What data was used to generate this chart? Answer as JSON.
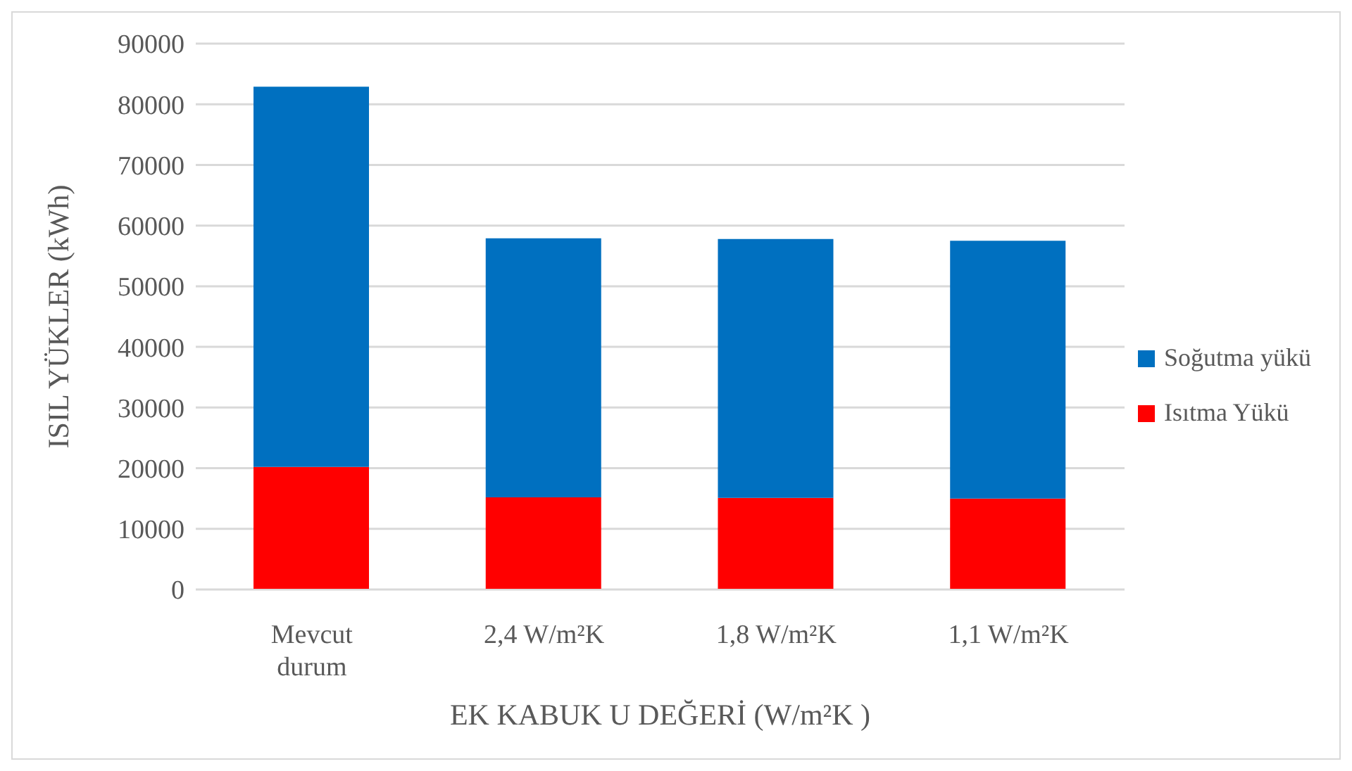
{
  "chart_data": {
    "type": "bar",
    "stacked": true,
    "xlabel": "EK KABUK U DEĞERİ (W/m²K )",
    "ylabel": "ISIL YÜKLER (kWh)",
    "categories": [
      "Mevcut durum",
      "2,4 W/m²K",
      "1,8 W/m²K",
      "1,1 W/m²K"
    ],
    "series": [
      {
        "name": "Isıtma Yükü",
        "color": "#ff0000",
        "values": [
          20200,
          15200,
          15100,
          15000
        ]
      },
      {
        "name": "Soğutma yükü",
        "color": "#0070c0",
        "values": [
          62700,
          42700,
          42700,
          42500
        ]
      }
    ],
    "ylim": [
      0,
      90000
    ],
    "yticks": [
      0,
      10000,
      20000,
      30000,
      40000,
      50000,
      60000,
      70000,
      80000,
      90000
    ],
    "grid": "y",
    "legend": "right"
  }
}
